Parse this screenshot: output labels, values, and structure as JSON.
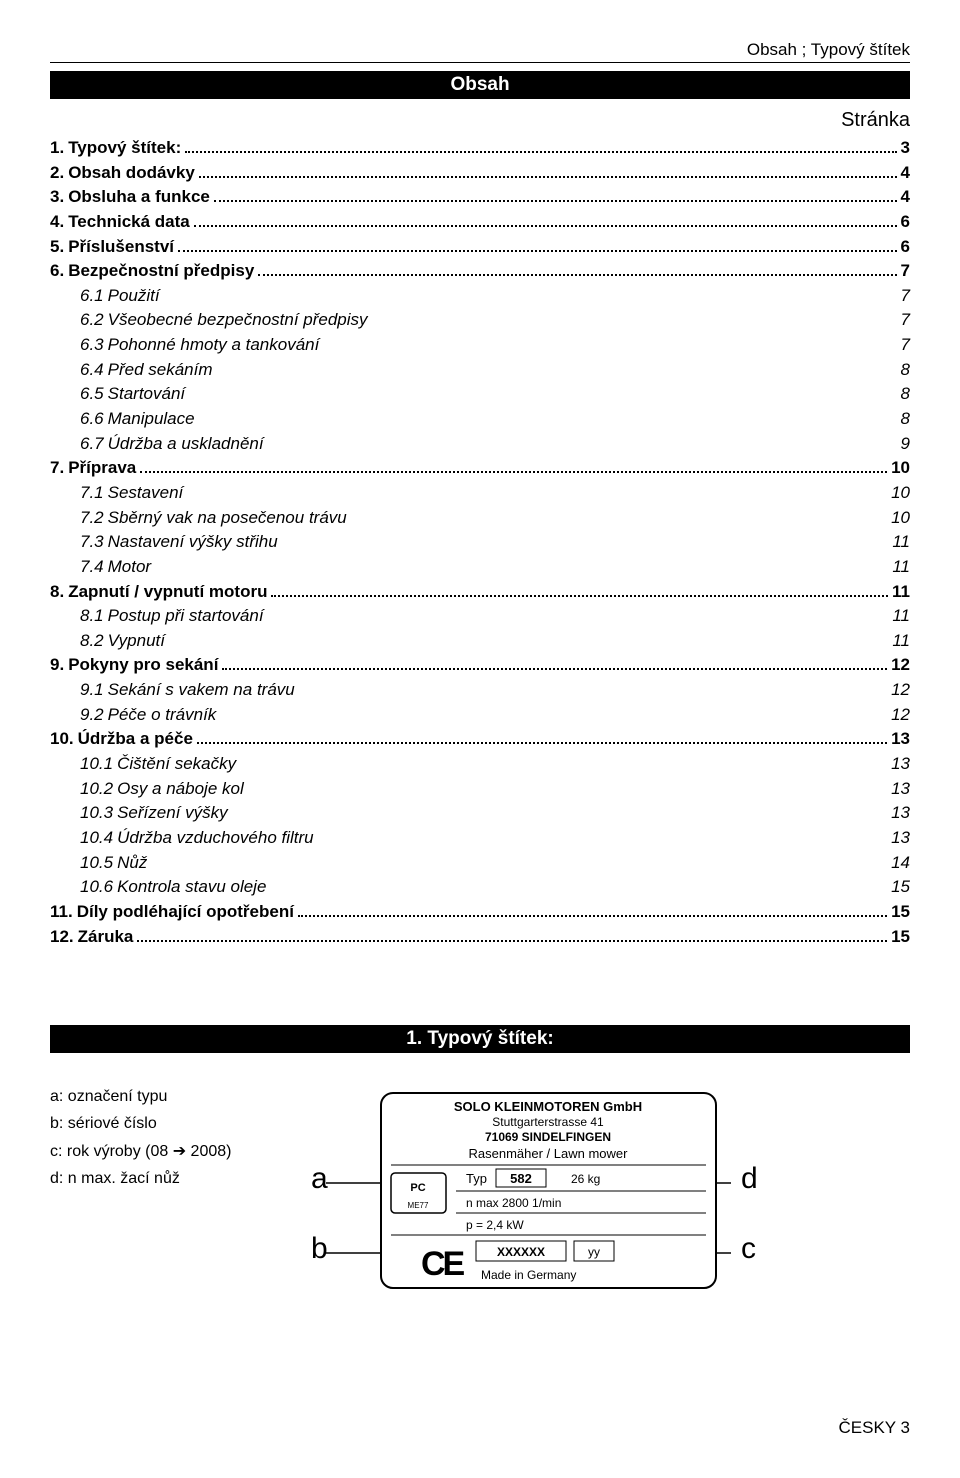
{
  "header_right": "Obsah ; Typový štítek",
  "obsah_banner": "Obsah",
  "page_label": "Stránka",
  "toc": [
    {
      "num": "1.",
      "title": "Typový štítek:",
      "page": "3",
      "bold": true,
      "dots": true,
      "indent": false
    },
    {
      "num": "2.",
      "title": "Obsah dodávky",
      "page": "4",
      "bold": true,
      "dots": true,
      "indent": false
    },
    {
      "num": "3.",
      "title": "Obsluha a funkce",
      "page": "4",
      "bold": true,
      "dots": true,
      "indent": false
    },
    {
      "num": "4.",
      "title": "Technická data",
      "page": "6",
      "bold": true,
      "dots": true,
      "indent": false
    },
    {
      "num": "5.",
      "title": "Příslušenství",
      "page": "6",
      "bold": true,
      "dots": true,
      "indent": false
    },
    {
      "num": "6.",
      "title": "Bezpečnostní předpisy",
      "page": "7",
      "bold": true,
      "dots": true,
      "indent": false
    },
    {
      "num": "6.1",
      "title": "Použití",
      "page": "7",
      "italic": true,
      "dots": false,
      "indent": true
    },
    {
      "num": "6.2",
      "title": "Všeobecné bezpečnostní předpisy",
      "page": "7",
      "italic": true,
      "dots": false,
      "indent": true
    },
    {
      "num": "6.3",
      "title": "Pohonné hmoty a tankování",
      "page": "7",
      "italic": true,
      "dots": false,
      "indent": true
    },
    {
      "num": "6.4",
      "title": "Před sekáním",
      "page": "8",
      "italic": true,
      "dots": false,
      "indent": true
    },
    {
      "num": "6.5",
      "title": "Startování",
      "page": "8",
      "italic": true,
      "dots": false,
      "indent": true
    },
    {
      "num": "6.6",
      "title": "Manipulace",
      "page": "8",
      "italic": true,
      "dots": false,
      "indent": true
    },
    {
      "num": "6.7",
      "title": "Údržba a uskladnění",
      "page": "9",
      "italic": true,
      "dots": false,
      "indent": true
    },
    {
      "num": "7.",
      "title": "Příprava",
      "page": "10",
      "bold": true,
      "dots": true,
      "indent": false
    },
    {
      "num": "7.1",
      "title": "Sestavení",
      "page": "10",
      "italic": true,
      "dots": false,
      "indent": true
    },
    {
      "num": "7.2",
      "title": "Sběrný vak na posečenou trávu",
      "page": "10",
      "italic": true,
      "dots": false,
      "indent": true
    },
    {
      "num": "7.3",
      "title": "Nastavení výšky střihu",
      "page": "11",
      "italic": true,
      "dots": false,
      "indent": true
    },
    {
      "num": "7.4",
      "title": "Motor",
      "page": "11",
      "italic": true,
      "dots": false,
      "indent": true
    },
    {
      "num": "8.",
      "title": "Zapnutí / vypnutí motoru",
      "page": "11",
      "bold": true,
      "dots": true,
      "indent": false
    },
    {
      "num": "8.1",
      "title": "Postup při startování",
      "page": "11",
      "italic": true,
      "dots": false,
      "indent": true
    },
    {
      "num": "8.2",
      "title": "Vypnutí",
      "page": "11",
      "italic": true,
      "dots": false,
      "indent": true
    },
    {
      "num": "9.",
      "title": "Pokyny pro sekání",
      "page": "12",
      "bold": true,
      "dots": true,
      "indent": false
    },
    {
      "num": "9.1",
      "title": "Sekání s vakem na trávu",
      "page": "12",
      "italic": true,
      "dots": false,
      "indent": true
    },
    {
      "num": "9.2",
      "title": "Péče o trávník",
      "page": "12",
      "italic": true,
      "dots": false,
      "indent": true
    },
    {
      "num": "10.",
      "title": "Údržba a péče",
      "page": "13",
      "bold": true,
      "dots": true,
      "indent": false
    },
    {
      "num": "10.1",
      "title": "Čištění sekačky",
      "page": "13",
      "italic": true,
      "dots": false,
      "indent": true
    },
    {
      "num": "10.2",
      "title": "Osy a náboje kol",
      "page": "13",
      "italic": true,
      "dots": false,
      "indent": true
    },
    {
      "num": "10.3",
      "title": "Seřízení výšky",
      "page": "13",
      "italic": true,
      "dots": false,
      "indent": true
    },
    {
      "num": "10.4",
      "title": "Údržba vzduchového filtru",
      "page": "13",
      "italic": true,
      "dots": false,
      "indent": true
    },
    {
      "num": "10.5",
      "title": "Nůž",
      "page": "14",
      "italic": true,
      "dots": false,
      "indent": true
    },
    {
      "num": "10.6",
      "title": "Kontrola stavu oleje",
      "page": "15",
      "italic": true,
      "dots": false,
      "indent": true
    },
    {
      "num": "11.",
      "title": "Díly podléhající opotřebení",
      "page": "15",
      "bold": true,
      "dots": true,
      "indent": false
    },
    {
      "num": "12.",
      "title": "Záruka",
      "page": "15",
      "bold": true,
      "dots": true,
      "indent": false
    }
  ],
  "type_label_banner": "1. Typový štítek:",
  "legend": {
    "a": "a: označení typu",
    "b": "b: sériové číslo",
    "c": "c: rok výroby (08 ➔ 2008)",
    "d": "d: n max. žací nůž"
  },
  "nameplate": {
    "company": "SOLO KLEINMOTOREN GmbH",
    "street": "Stuttgarterstrasse 41",
    "city": "71069 SINDELFINGEN",
    "product": "Rasenmäher / Lawn mower",
    "typ_label": "Typ",
    "typ_value": "582",
    "weight": "26 kg",
    "nmax": "n max 2800 1/min",
    "power": "p = 2,4 kW",
    "serial": "XXXXXX",
    "year": "yy",
    "made": "Made in Germany",
    "cert": "ME77"
  },
  "footer": "ČESKY 3"
}
